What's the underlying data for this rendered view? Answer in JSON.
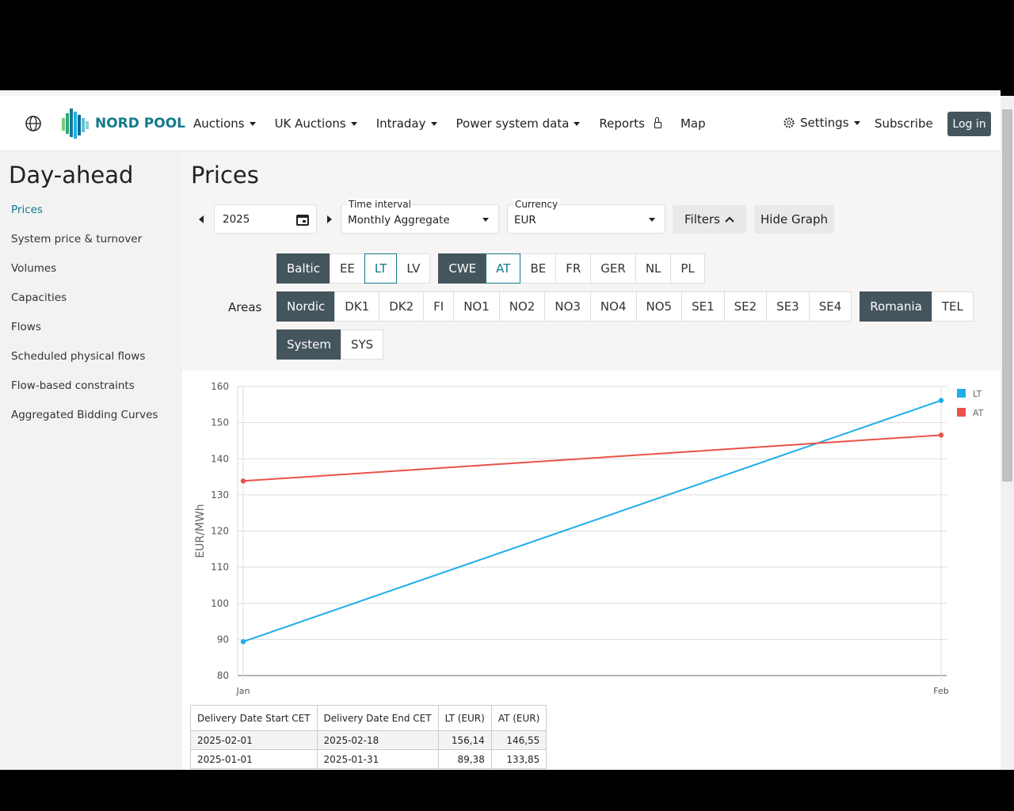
{
  "header": {
    "logo": "NORD POOL",
    "nav": [
      {
        "label": "Auctions",
        "dropdown": true
      },
      {
        "label": "UK Auctions",
        "dropdown": true
      },
      {
        "label": "Intraday",
        "dropdown": true
      },
      {
        "label": "Power system data",
        "dropdown": true
      },
      {
        "label": "Reports",
        "locked": true
      },
      {
        "label": "Map"
      }
    ],
    "settings": "Settings",
    "subscribe": "Subscribe",
    "login": "Log in"
  },
  "sidebar": {
    "title": "Day-ahead",
    "items": [
      "Prices",
      "System price & turnover",
      "Volumes",
      "Capacities",
      "Flows",
      "Scheduled physical flows",
      "Flow-based constraints",
      "Aggregated Bidding Curves"
    ]
  },
  "main": {
    "title": "Prices",
    "date": "2025",
    "time_interval": {
      "label": "Time interval",
      "value": "Monthly Aggregate"
    },
    "currency": {
      "label": "Currency",
      "value": "EUR"
    },
    "filters": "Filters",
    "hide_graph": "Hide Graph",
    "areas_label": "Areas",
    "area_rows": [
      [
        [
          {
            "label": "Baltic"
          },
          {
            "label": "EE"
          },
          {
            "label": "LT",
            "selected": true
          },
          {
            "label": "LV"
          }
        ],
        [
          {
            "label": "CWE"
          },
          {
            "label": "AT",
            "selected": true
          },
          {
            "label": "BE"
          },
          {
            "label": "FR"
          },
          {
            "label": "GER"
          },
          {
            "label": "NL"
          },
          {
            "label": "PL"
          }
        ]
      ],
      [
        [
          {
            "label": "Nordic"
          },
          {
            "label": "DK1"
          },
          {
            "label": "DK2"
          },
          {
            "label": "FI"
          },
          {
            "label": "NO1"
          },
          {
            "label": "NO2"
          },
          {
            "label": "NO3"
          },
          {
            "label": "NO4"
          },
          {
            "label": "NO5"
          },
          {
            "label": "SE1"
          },
          {
            "label": "SE2"
          },
          {
            "label": "SE3"
          },
          {
            "label": "SE4"
          }
        ],
        [
          {
            "label": "Romania"
          },
          {
            "label": "TEL"
          }
        ]
      ],
      [
        [
          {
            "label": "System"
          },
          {
            "label": "SYS"
          }
        ]
      ]
    ]
  },
  "chart_data": {
    "type": "line",
    "y_label": "EUR/MWh",
    "categories": [
      "Jan",
      "Feb"
    ],
    "series": [
      {
        "name": "LT",
        "color": "#1eaee9",
        "values": [
          89.38,
          156.14
        ]
      },
      {
        "name": "AT",
        "color": "#e8534a",
        "values": [
          133.85,
          146.55
        ]
      }
    ],
    "ylim": [
      80,
      160
    ],
    "yticks": [
      80,
      90,
      100,
      110,
      120,
      130,
      140,
      150,
      160
    ],
    "grid": true,
    "legend": "top-right"
  },
  "table": {
    "columns": [
      "Delivery Date Start CET",
      "Delivery Date End CET",
      "LT (EUR)",
      "AT (EUR)"
    ],
    "rows": [
      [
        "2025-02-01",
        "2025-02-18",
        "156,14",
        "146,55"
      ],
      [
        "2025-01-01",
        "2025-01-31",
        "89,38",
        "133,85"
      ]
    ]
  }
}
